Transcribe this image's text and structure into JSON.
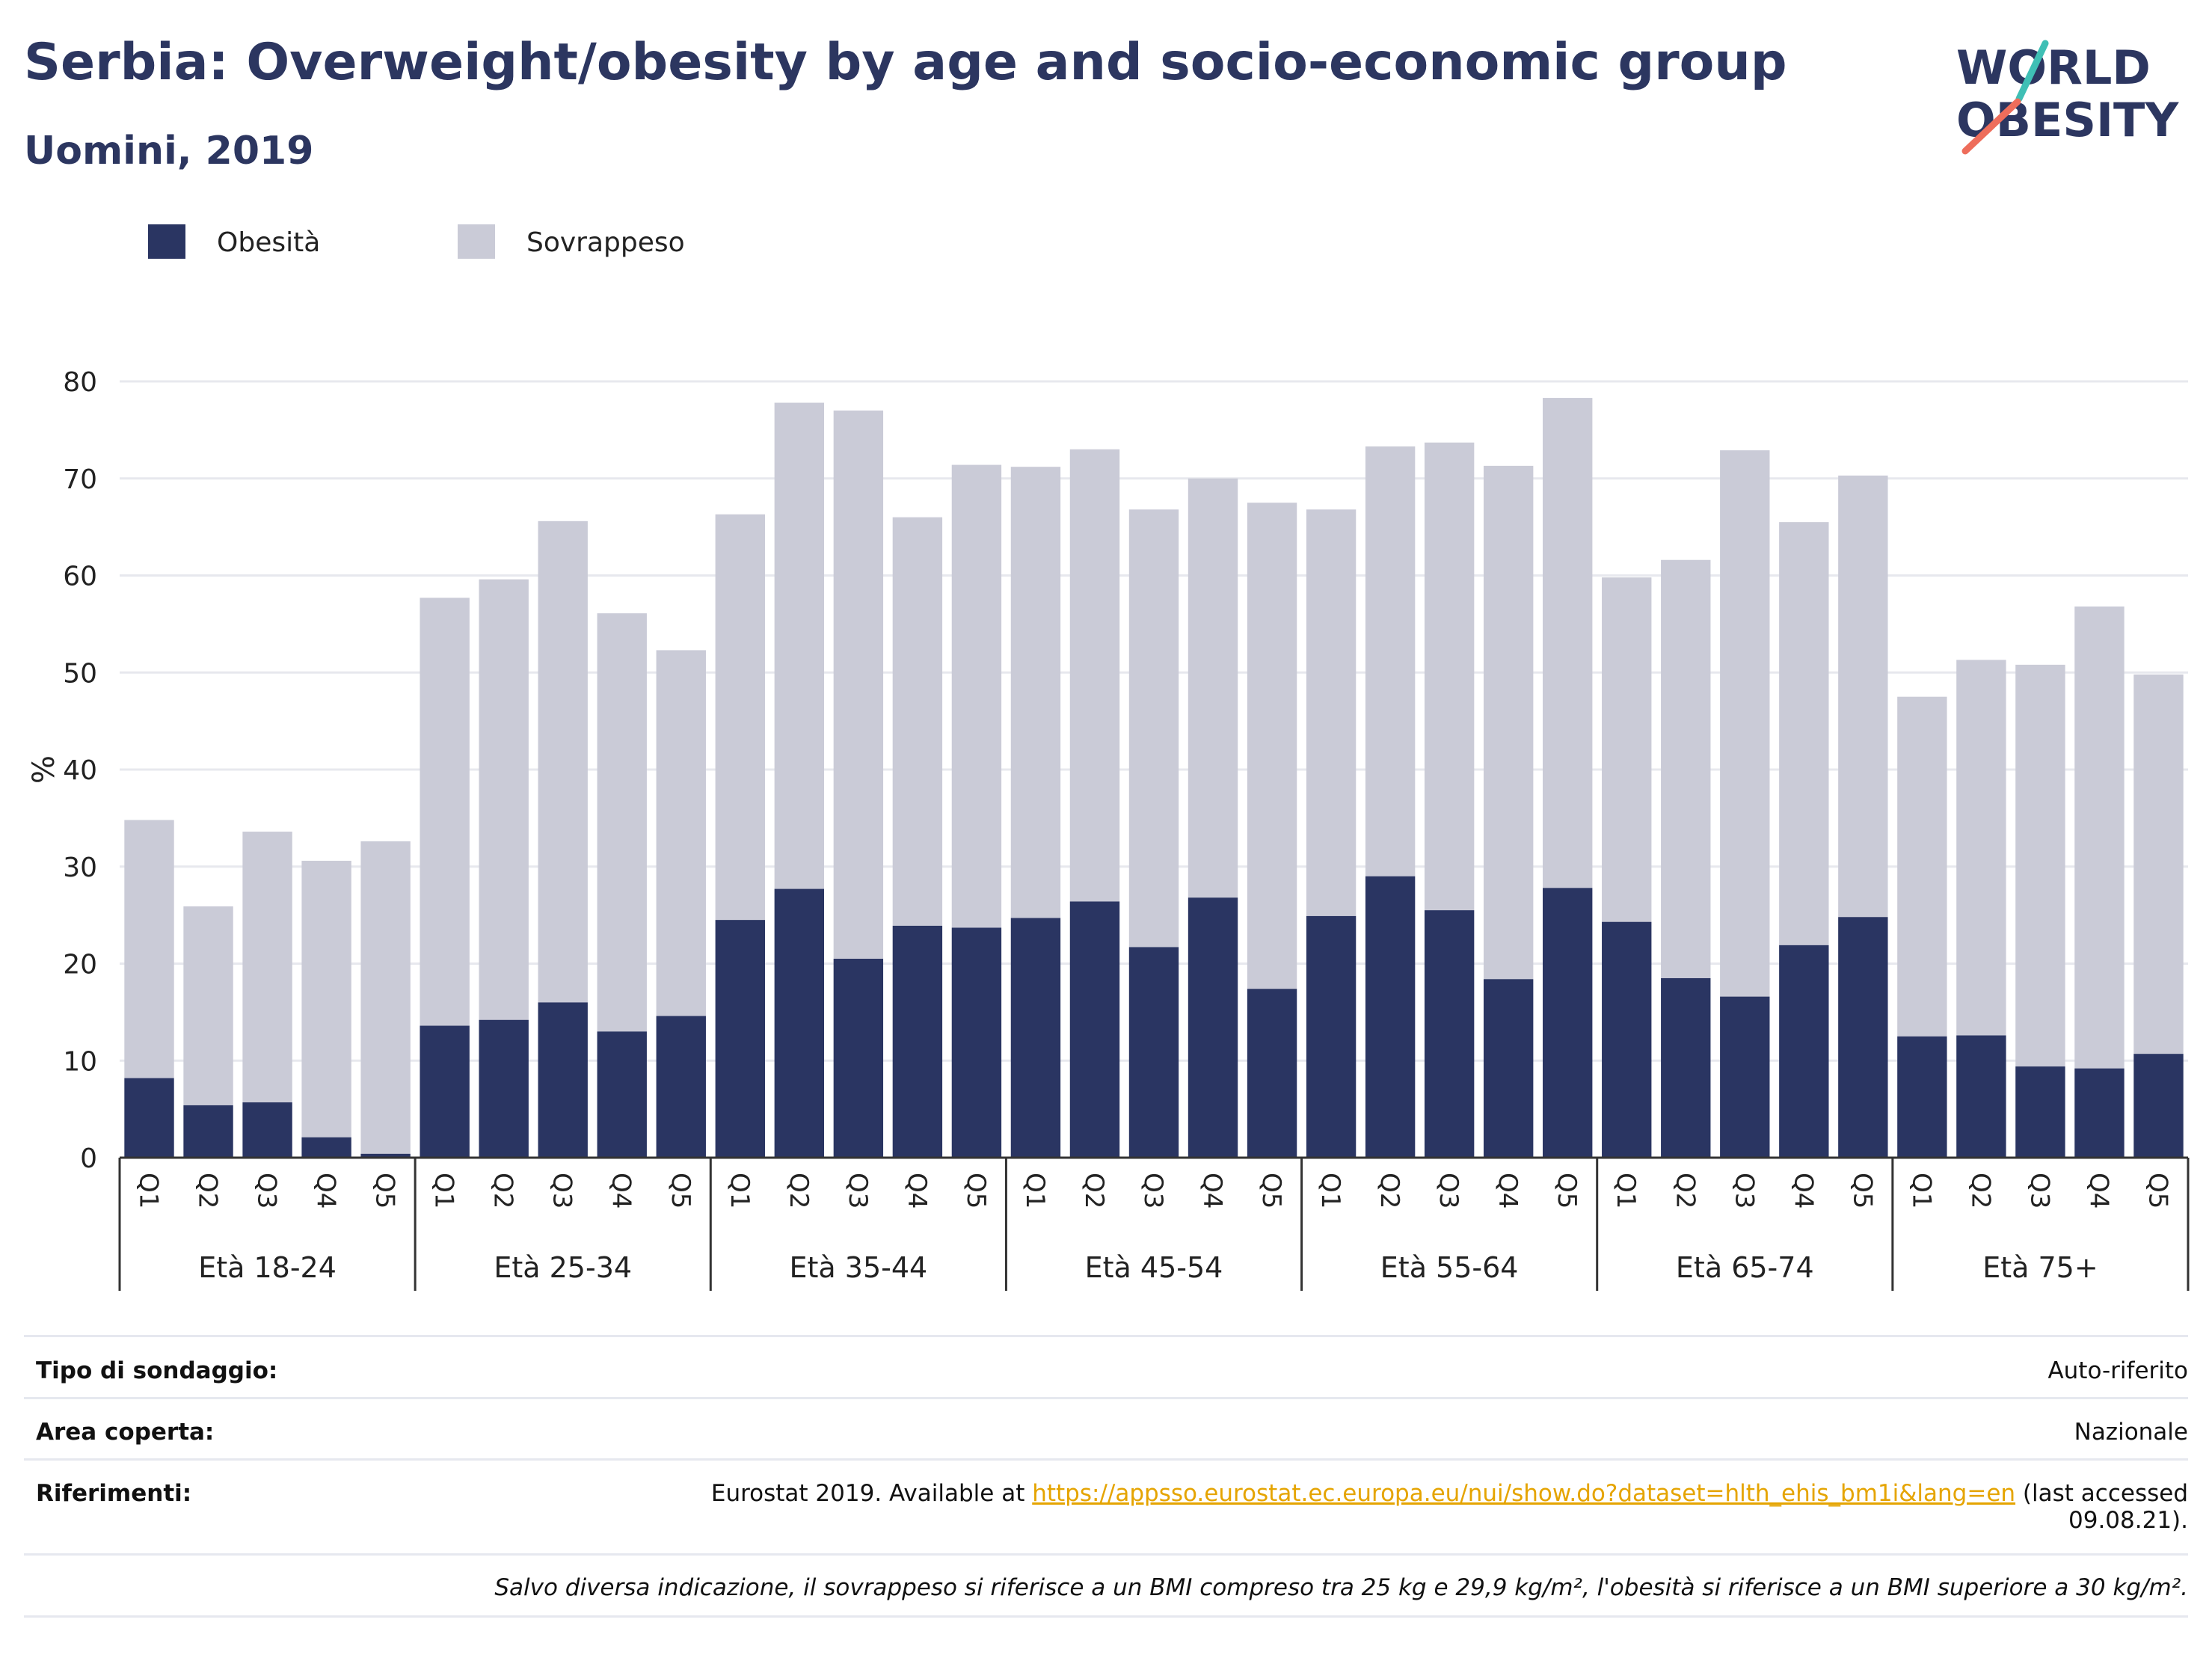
{
  "title": "Serbia: Overweight/obesity by age and socio-economic group",
  "subtitle": "Uomini, 2019",
  "logo": {
    "line1": "WORLD",
    "line2": "OBESITY"
  },
  "colors": {
    "obesity": "#2a3562",
    "overweight": "#cacbd7",
    "title": "#2c3660",
    "grid": "#e7e8ee",
    "link": "#e5a400"
  },
  "chart_data": {
    "type": "bar",
    "stacked": true,
    "ylabel": "%",
    "ylim": [
      0,
      80
    ],
    "yticks": [
      0,
      10,
      20,
      30,
      40,
      50,
      60,
      70,
      80
    ],
    "legend": {
      "position": "top-left"
    },
    "series": [
      {
        "name": "Obesità",
        "color": "#2a3562"
      },
      {
        "name": "Sovrappeso",
        "color": "#cacbd7"
      }
    ],
    "groups": [
      {
        "label": "Età 18-24",
        "categories": [
          "Q1",
          "Q2",
          "Q3",
          "Q4",
          "Q5"
        ],
        "obesity": [
          8.2,
          5.4,
          5.7,
          2.1,
          0.4
        ],
        "total": [
          34.8,
          25.9,
          33.6,
          30.6,
          32.6
        ]
      },
      {
        "label": "Età 25-34",
        "categories": [
          "Q1",
          "Q2",
          "Q3",
          "Q4",
          "Q5"
        ],
        "obesity": [
          13.6,
          14.2,
          16.0,
          13.0,
          14.6
        ],
        "total": [
          57.7,
          59.6,
          65.6,
          56.1,
          52.3
        ]
      },
      {
        "label": "Età 35-44",
        "categories": [
          "Q1",
          "Q2",
          "Q3",
          "Q4",
          "Q5"
        ],
        "obesity": [
          24.5,
          27.7,
          20.5,
          23.9,
          23.7
        ],
        "total": [
          66.3,
          77.8,
          77.0,
          66.0,
          71.4
        ]
      },
      {
        "label": "Età 45-54",
        "categories": [
          "Q1",
          "Q2",
          "Q3",
          "Q4",
          "Q5"
        ],
        "obesity": [
          24.7,
          26.4,
          21.7,
          26.8,
          17.4
        ],
        "total": [
          71.2,
          73.0,
          66.8,
          70.0,
          67.5
        ]
      },
      {
        "label": "Età 55-64",
        "categories": [
          "Q1",
          "Q2",
          "Q3",
          "Q4",
          "Q5"
        ],
        "obesity": [
          24.9,
          29.0,
          25.5,
          18.4,
          27.8
        ],
        "total": [
          66.8,
          73.3,
          73.7,
          71.3,
          78.3
        ]
      },
      {
        "label": "Età 65-74",
        "categories": [
          "Q1",
          "Q2",
          "Q3",
          "Q4",
          "Q5"
        ],
        "obesity": [
          24.3,
          18.5,
          16.6,
          21.9,
          24.8
        ],
        "total": [
          59.8,
          61.6,
          72.9,
          65.5,
          70.3
        ]
      },
      {
        "label": "Età 75+",
        "categories": [
          "Q1",
          "Q2",
          "Q3",
          "Q4",
          "Q5"
        ],
        "obesity": [
          12.5,
          12.6,
          9.4,
          9.2,
          10.7
        ],
        "total": [
          47.5,
          51.3,
          50.8,
          56.8,
          49.8
        ]
      }
    ]
  },
  "footer": {
    "survey_type_label": "Tipo di sondaggio:",
    "survey_type_value": "Auto-riferito",
    "area_label": "Area coperta:",
    "area_value": "Nazionale",
    "references_label": "Riferimenti:",
    "references_prefix": "Eurostat 2019. Available at",
    "references_link": "https://appsso.eurostat.ec.europa.eu/nui/show.do?dataset=hlth_ehis_bm1i&lang=en",
    "references_suffix": "(last accessed",
    "references_date": "09.08.21).",
    "note": "Salvo diversa indicazione, il sovrappeso si riferisce a un BMI compreso tra 25 kg e 29,9 kg/m², l'obesità si riferisce a un BMI superiore a 30 kg/m²."
  }
}
